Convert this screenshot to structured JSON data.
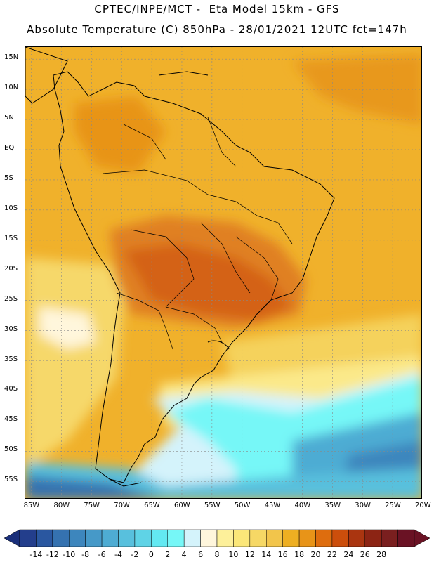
{
  "header": {
    "line1": "CPTEC/INPE/MCT -  Eta Model 15km - GFS",
    "line2": "Absolute Temperature (C) 850hPa - 28/01/2021 12UTC fct=147h"
  },
  "map": {
    "lon_range": [
      -86,
      -20
    ],
    "lat_range": [
      -58,
      17
    ],
    "lat_ticks": [
      {
        "value": 15,
        "label": "15N"
      },
      {
        "value": 10,
        "label": "10N"
      },
      {
        "value": 5,
        "label": "5N"
      },
      {
        "value": 0,
        "label": "EQ"
      },
      {
        "value": -5,
        "label": "5S"
      },
      {
        "value": -10,
        "label": "10S"
      },
      {
        "value": -15,
        "label": "15S"
      },
      {
        "value": -20,
        "label": "20S"
      },
      {
        "value": -25,
        "label": "25S"
      },
      {
        "value": -30,
        "label": "30S"
      },
      {
        "value": -35,
        "label": "35S"
      },
      {
        "value": -40,
        "label": "40S"
      },
      {
        "value": -45,
        "label": "45S"
      },
      {
        "value": -50,
        "label": "50S"
      },
      {
        "value": -55,
        "label": "55S"
      }
    ],
    "lon_ticks": [
      {
        "value": -85,
        "label": "85W"
      },
      {
        "value": -80,
        "label": "80W"
      },
      {
        "value": -75,
        "label": "75W"
      },
      {
        "value": -70,
        "label": "70W"
      },
      {
        "value": -65,
        "label": "65W"
      },
      {
        "value": -60,
        "label": "60W"
      },
      {
        "value": -55,
        "label": "55W"
      },
      {
        "value": -50,
        "label": "50W"
      },
      {
        "value": -45,
        "label": "45W"
      },
      {
        "value": -40,
        "label": "40W"
      },
      {
        "value": -35,
        "label": "35W"
      },
      {
        "value": -30,
        "label": "30W"
      },
      {
        "value": -25,
        "label": "25W"
      },
      {
        "value": -20,
        "label": "20W"
      }
    ]
  },
  "colorbar": {
    "labels": [
      "-14",
      "-12",
      "-10",
      "-8",
      "-6",
      "-4",
      "-2",
      "0",
      "2",
      "4",
      "6",
      "8",
      "10",
      "12",
      "14",
      "16",
      "18",
      "20",
      "22",
      "24",
      "26",
      "28"
    ],
    "colors": [
      "#233e8c",
      "#2a57a0",
      "#3572b0",
      "#3d86bd",
      "#4699c8",
      "#4eacd3",
      "#58c0dd",
      "#5fd3e6",
      "#63e9f2",
      "#76f7f7",
      "#d4f3fb",
      "#fff6dc",
      "#fdf09a",
      "#fbe779",
      "#f6d865",
      "#f2c54b",
      "#eeaf22",
      "#e89418",
      "#de6d0e",
      "#cc4e0c",
      "#aa3510",
      "#8c2414",
      "#7a1f1f",
      "#6a1224"
    ],
    "end_low": "#1a2f7a",
    "end_high": "#6a1224"
  }
}
